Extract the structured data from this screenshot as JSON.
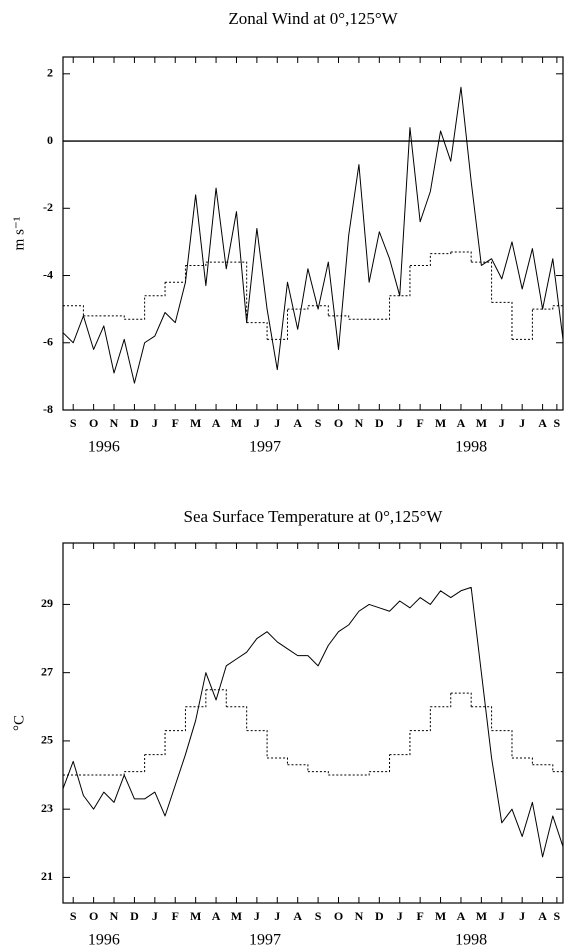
{
  "chart_data": [
    {
      "type": "line",
      "title": "Zonal Wind at 0°,125°W",
      "y_label": "m s⁻¹",
      "xlim": [
        0,
        24.5
      ],
      "ylim": [
        -8,
        2.5
      ],
      "yticks": [
        -8,
        -6,
        -4,
        -2,
        0,
        2
      ],
      "reference_line": 0,
      "xticks": [
        {
          "value": 0.5,
          "label": "S"
        },
        {
          "value": 1.5,
          "label": "O"
        },
        {
          "value": 2.5,
          "label": "N"
        },
        {
          "value": 3.5,
          "label": "D"
        },
        {
          "value": 4.5,
          "label": "J"
        },
        {
          "value": 5.5,
          "label": "F"
        },
        {
          "value": 6.5,
          "label": "M"
        },
        {
          "value": 7.5,
          "label": "A"
        },
        {
          "value": 8.5,
          "label": "M"
        },
        {
          "value": 9.5,
          "label": "J"
        },
        {
          "value": 10.5,
          "label": "J"
        },
        {
          "value": 11.5,
          "label": "A"
        },
        {
          "value": 12.5,
          "label": "S"
        },
        {
          "value": 13.5,
          "label": "O"
        },
        {
          "value": 14.5,
          "label": "N"
        },
        {
          "value": 15.5,
          "label": "D"
        },
        {
          "value": 16.5,
          "label": "J"
        },
        {
          "value": 17.5,
          "label": "F"
        },
        {
          "value": 18.5,
          "label": "M"
        },
        {
          "value": 19.5,
          "label": "A"
        },
        {
          "value": 20.5,
          "label": "M"
        },
        {
          "value": 21.5,
          "label": "J"
        },
        {
          "value": 22.5,
          "label": "J"
        },
        {
          "value": 23.5,
          "label": "A"
        },
        {
          "value": 24.2,
          "label": "S"
        }
      ],
      "year_labels": [
        {
          "value": 2,
          "label": "1996"
        },
        {
          "value": 9.9,
          "label": "1997"
        },
        {
          "value": 20,
          "label": "1998"
        }
      ],
      "series": [
        {
          "style": "solid",
          "color": "#000000",
          "x": [
            0,
            0.5,
            1,
            1.5,
            2,
            2.5,
            3,
            3.5,
            4,
            4.5,
            5,
            5.5,
            6,
            6.5,
            7,
            7.5,
            8,
            8.5,
            9,
            9.5,
            10,
            10.5,
            11,
            11.5,
            12,
            12.5,
            13,
            13.5,
            14,
            14.5,
            15,
            15.5,
            16,
            16.5,
            17,
            17.5,
            18,
            18.5,
            19,
            19.5,
            20,
            20.5,
            21,
            21.5,
            22,
            22.5,
            23,
            23.5,
            24,
            24.5
          ],
          "values": [
            -5.7,
            -6.0,
            -5.2,
            -6.2,
            -5.5,
            -6.9,
            -5.9,
            -7.2,
            -6.0,
            -5.8,
            -5.1,
            -5.4,
            -4.2,
            -1.6,
            -4.3,
            -1.4,
            -3.8,
            -2.1,
            -5.4,
            -2.6,
            -5.0,
            -6.8,
            -4.2,
            -5.6,
            -3.8,
            -5.0,
            -3.6,
            -6.2,
            -2.8,
            -0.7,
            -4.2,
            -2.7,
            -3.5,
            -4.6,
            0.4,
            -2.4,
            -1.5,
            0.3,
            -0.6,
            1.6,
            -1.2,
            -3.7,
            -3.5,
            -4.1,
            -3.0,
            -4.4,
            -3.2,
            -5.0,
            -3.5,
            -5.9
          ]
        },
        {
          "style": "dotted",
          "step": true,
          "color": "#000000",
          "x": [
            0,
            1,
            2,
            3,
            4,
            5,
            6,
            7,
            8,
            9,
            10,
            11,
            12,
            13,
            14,
            15,
            16,
            17,
            18,
            19,
            20,
            21,
            22,
            23,
            24
          ],
          "values": [
            -4.9,
            -5.2,
            -5.2,
            -5.3,
            -4.6,
            -4.2,
            -3.7,
            -3.6,
            -3.6,
            -5.4,
            -5.9,
            -5.0,
            -4.9,
            -5.2,
            -5.3,
            -5.3,
            -4.6,
            -3.7,
            -3.35,
            -3.3,
            -3.6,
            -4.8,
            -5.9,
            -5.0,
            -4.9
          ]
        }
      ]
    },
    {
      "type": "line",
      "title": "Sea Surface Temperature at 0°,125°W",
      "y_label": "°C",
      "xlim": [
        0,
        24.5
      ],
      "ylim": [
        20.25,
        30.8
      ],
      "yticks": [
        21,
        23,
        25,
        27,
        29
      ],
      "xticks": [
        {
          "value": 0.5,
          "label": "S"
        },
        {
          "value": 1.5,
          "label": "O"
        },
        {
          "value": 2.5,
          "label": "N"
        },
        {
          "value": 3.5,
          "label": "D"
        },
        {
          "value": 4.5,
          "label": "J"
        },
        {
          "value": 5.5,
          "label": "F"
        },
        {
          "value": 6.5,
          "label": "M"
        },
        {
          "value": 7.5,
          "label": "A"
        },
        {
          "value": 8.5,
          "label": "M"
        },
        {
          "value": 9.5,
          "label": "J"
        },
        {
          "value": 10.5,
          "label": "J"
        },
        {
          "value": 11.5,
          "label": "A"
        },
        {
          "value": 12.5,
          "label": "S"
        },
        {
          "value": 13.5,
          "label": "O"
        },
        {
          "value": 14.5,
          "label": "N"
        },
        {
          "value": 15.5,
          "label": "D"
        },
        {
          "value": 16.5,
          "label": "J"
        },
        {
          "value": 17.5,
          "label": "F"
        },
        {
          "value": 18.5,
          "label": "M"
        },
        {
          "value": 19.5,
          "label": "A"
        },
        {
          "value": 20.5,
          "label": "M"
        },
        {
          "value": 21.5,
          "label": "J"
        },
        {
          "value": 22.5,
          "label": "J"
        },
        {
          "value": 23.5,
          "label": "A"
        },
        {
          "value": 24.2,
          "label": "S"
        }
      ],
      "year_labels": [
        {
          "value": 2,
          "label": "1996"
        },
        {
          "value": 9.9,
          "label": "1997"
        },
        {
          "value": 20,
          "label": "1998"
        }
      ],
      "series": [
        {
          "style": "solid",
          "color": "#000000",
          "x": [
            0,
            0.5,
            1,
            1.5,
            2,
            2.5,
            3,
            3.5,
            4,
            4.5,
            5,
            5.5,
            6,
            6.5,
            7,
            7.5,
            8,
            8.5,
            9,
            9.5,
            10,
            10.5,
            11,
            11.5,
            12,
            12.5,
            13,
            13.5,
            14,
            14.5,
            15,
            15.5,
            16,
            16.5,
            17,
            17.5,
            18,
            18.5,
            19,
            19.5,
            20,
            20.5,
            21,
            21.5,
            22,
            22.5,
            23,
            23.5,
            24,
            24.5
          ],
          "values": [
            23.6,
            24.4,
            23.4,
            23.0,
            23.5,
            23.2,
            24.0,
            23.3,
            23.3,
            23.5,
            22.8,
            23.7,
            24.6,
            25.6,
            27.0,
            26.2,
            27.2,
            27.4,
            27.6,
            28.0,
            28.2,
            27.9,
            27.7,
            27.5,
            27.5,
            27.2,
            27.8,
            28.2,
            28.4,
            28.8,
            29.0,
            28.9,
            28.8,
            29.1,
            28.9,
            29.2,
            29.0,
            29.4,
            29.2,
            29.4,
            29.5,
            27.0,
            24.5,
            22.6,
            23.0,
            22.2,
            23.2,
            21.6,
            22.8,
            21.9
          ]
        },
        {
          "style": "dotted",
          "step": true,
          "color": "#000000",
          "x": [
            0,
            1,
            2,
            3,
            4,
            5,
            6,
            7,
            8,
            9,
            10,
            11,
            12,
            13,
            14,
            15,
            16,
            17,
            18,
            19,
            20,
            21,
            22,
            23,
            24
          ],
          "values": [
            24.0,
            24.0,
            24.0,
            24.1,
            24.6,
            25.3,
            26.0,
            26.5,
            26.0,
            25.3,
            24.5,
            24.3,
            24.1,
            24.0,
            24.0,
            24.1,
            24.6,
            25.3,
            26.0,
            26.4,
            26.0,
            25.3,
            24.5,
            24.3,
            24.1
          ]
        }
      ]
    }
  ]
}
